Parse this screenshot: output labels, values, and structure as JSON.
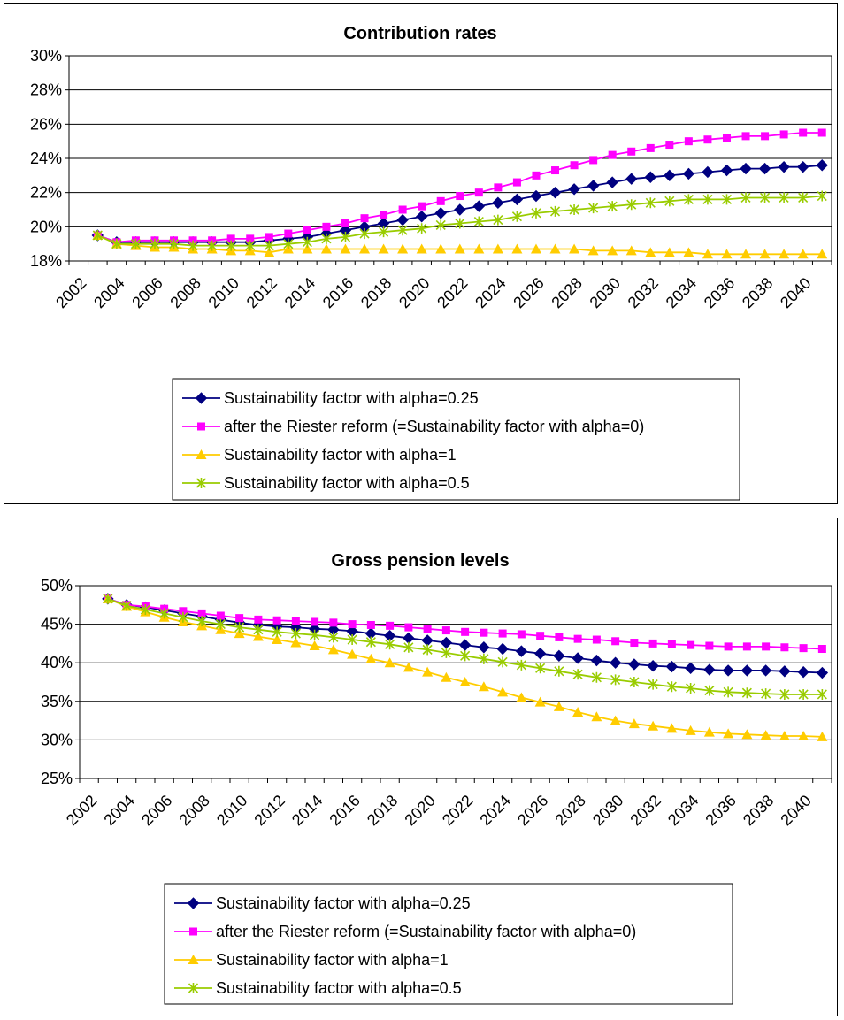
{
  "chart_data": [
    {
      "type": "line",
      "title": "Contribution rates",
      "xlabel": "",
      "ylabel": "",
      "x": [
        2003,
        2004,
        2005,
        2006,
        2007,
        2008,
        2009,
        2010,
        2011,
        2012,
        2013,
        2014,
        2015,
        2016,
        2017,
        2018,
        2019,
        2020,
        2021,
        2022,
        2023,
        2024,
        2025,
        2026,
        2027,
        2028,
        2029,
        2030,
        2031,
        2032,
        2033,
        2034,
        2035,
        2036,
        2037,
        2038,
        2039,
        2040,
        2041
      ],
      "x_ticks": [
        "2002",
        "2004",
        "2006",
        "2008",
        "2010",
        "2012",
        "2014",
        "2016",
        "2018",
        "2020",
        "2022",
        "2024",
        "2026",
        "2028",
        "2030",
        "2032",
        "2034",
        "2036",
        "2038",
        "2040"
      ],
      "ylim": [
        18,
        30
      ],
      "y_ticks": [
        "18%",
        "20%",
        "22%",
        "24%",
        "26%",
        "28%",
        "30%"
      ],
      "grid": "horizontal",
      "legend_position": "bottom",
      "series": [
        {
          "name": "Sustainability factor with alpha=0.25",
          "color": "#000080",
          "marker": "diamond",
          "values": [
            19.5,
            19.1,
            19.1,
            19.1,
            19.1,
            19.1,
            19.1,
            19.1,
            19.1,
            19.2,
            19.3,
            19.4,
            19.6,
            19.8,
            20.0,
            20.2,
            20.4,
            20.6,
            20.8,
            21.0,
            21.2,
            21.4,
            21.6,
            21.8,
            22.0,
            22.2,
            22.4,
            22.6,
            22.8,
            22.9,
            23.0,
            23.1,
            23.2,
            23.3,
            23.4,
            23.4,
            23.5,
            23.5,
            23.6
          ]
        },
        {
          "name": "after the Riester reform (=Sustainability factor with alpha=0)",
          "color": "#FF00FF",
          "marker": "square",
          "values": [
            19.5,
            19.1,
            19.2,
            19.2,
            19.2,
            19.2,
            19.2,
            19.3,
            19.3,
            19.4,
            19.6,
            19.8,
            20.0,
            20.2,
            20.5,
            20.7,
            21.0,
            21.2,
            21.5,
            21.8,
            22.0,
            22.3,
            22.6,
            23.0,
            23.3,
            23.6,
            23.9,
            24.2,
            24.4,
            24.6,
            24.8,
            25.0,
            25.1,
            25.2,
            25.3,
            25.3,
            25.4,
            25.5,
            25.5
          ]
        },
        {
          "name": "Sustainability factor with alpha=1",
          "color": "#FFCC00",
          "marker": "triangle",
          "values": [
            19.5,
            19.0,
            18.9,
            18.8,
            18.8,
            18.7,
            18.7,
            18.6,
            18.6,
            18.5,
            18.7,
            18.7,
            18.7,
            18.7,
            18.7,
            18.7,
            18.7,
            18.7,
            18.7,
            18.7,
            18.7,
            18.7,
            18.7,
            18.7,
            18.7,
            18.7,
            18.6,
            18.6,
            18.6,
            18.5,
            18.5,
            18.5,
            18.4,
            18.4,
            18.4,
            18.4,
            18.4,
            18.4,
            18.4
          ]
        },
        {
          "name": "Sustainability factor with alpha=0.5",
          "color": "#99CC00",
          "marker": "asterisk",
          "values": [
            19.5,
            19.0,
            19.0,
            19.0,
            19.0,
            18.9,
            18.9,
            18.9,
            18.9,
            18.9,
            19.0,
            19.1,
            19.3,
            19.4,
            19.6,
            19.7,
            19.8,
            19.9,
            20.1,
            20.2,
            20.3,
            20.4,
            20.6,
            20.8,
            20.9,
            21.0,
            21.1,
            21.2,
            21.3,
            21.4,
            21.5,
            21.6,
            21.6,
            21.6,
            21.7,
            21.7,
            21.7,
            21.7,
            21.8
          ]
        }
      ]
    },
    {
      "type": "line",
      "title": "Gross pension levels",
      "xlabel": "",
      "ylabel": "",
      "x": [
        2003,
        2004,
        2005,
        2006,
        2007,
        2008,
        2009,
        2010,
        2011,
        2012,
        2013,
        2014,
        2015,
        2016,
        2017,
        2018,
        2019,
        2020,
        2021,
        2022,
        2023,
        2024,
        2025,
        2026,
        2027,
        2028,
        2029,
        2030,
        2031,
        2032,
        2033,
        2034,
        2035,
        2036,
        2037,
        2038,
        2039,
        2040,
        2041
      ],
      "x_ticks": [
        "2002",
        "2004",
        "2006",
        "2008",
        "2010",
        "2012",
        "2014",
        "2016",
        "2018",
        "2020",
        "2022",
        "2024",
        "2026",
        "2028",
        "2030",
        "2032",
        "2034",
        "2036",
        "2038",
        "2040"
      ],
      "ylim": [
        25,
        50
      ],
      "y_ticks": [
        "25%",
        "30%",
        "35%",
        "40%",
        "45%",
        "50%"
      ],
      "grid": "horizontal",
      "legend_position": "bottom",
      "series": [
        {
          "name": "Sustainability factor with alpha=0.25",
          "color": "#000080",
          "marker": "diamond",
          "values": [
            48.3,
            47.5,
            47.2,
            46.8,
            46.4,
            46.0,
            45.6,
            45.2,
            44.9,
            44.7,
            44.6,
            44.4,
            44.3,
            44.1,
            43.8,
            43.5,
            43.2,
            42.9,
            42.6,
            42.3,
            42.0,
            41.8,
            41.5,
            41.2,
            40.9,
            40.6,
            40.3,
            40.0,
            39.8,
            39.6,
            39.5,
            39.3,
            39.1,
            39.0,
            39.0,
            39.0,
            38.9,
            38.8,
            38.7
          ]
        },
        {
          "name": "after the Riester reform (=Sustainability factor with alpha=0)",
          "color": "#FF00FF",
          "marker": "square",
          "values": [
            48.3,
            47.5,
            47.3,
            47.0,
            46.7,
            46.4,
            46.1,
            45.8,
            45.6,
            45.5,
            45.4,
            45.3,
            45.2,
            45.0,
            44.9,
            44.8,
            44.6,
            44.4,
            44.2,
            44.0,
            43.9,
            43.8,
            43.7,
            43.5,
            43.3,
            43.1,
            43.0,
            42.8,
            42.6,
            42.5,
            42.4,
            42.3,
            42.2,
            42.1,
            42.1,
            42.1,
            42.0,
            41.9,
            41.8
          ]
        },
        {
          "name": "Sustainability factor with alpha=1",
          "color": "#FFCC00",
          "marker": "triangle",
          "values": [
            48.3,
            47.3,
            46.6,
            45.9,
            45.3,
            44.8,
            44.3,
            43.8,
            43.4,
            43.0,
            42.6,
            42.2,
            41.7,
            41.1,
            40.5,
            40.0,
            39.4,
            38.8,
            38.1,
            37.5,
            36.9,
            36.2,
            35.5,
            34.9,
            34.3,
            33.6,
            33.0,
            32.5,
            32.1,
            31.8,
            31.5,
            31.2,
            31.0,
            30.8,
            30.7,
            30.6,
            30.5,
            30.5,
            30.4
          ]
        },
        {
          "name": "Sustainability factor with alpha=0.5",
          "color": "#99CC00",
          "marker": "asterisk",
          "values": [
            48.3,
            47.4,
            46.9,
            46.4,
            45.9,
            45.4,
            45.0,
            44.6,
            44.3,
            44.0,
            43.8,
            43.6,
            43.3,
            43.0,
            42.7,
            42.4,
            42.0,
            41.7,
            41.3,
            40.9,
            40.5,
            40.1,
            39.7,
            39.3,
            38.9,
            38.5,
            38.1,
            37.8,
            37.5,
            37.2,
            36.9,
            36.7,
            36.4,
            36.2,
            36.1,
            36.0,
            35.9,
            35.9,
            35.9
          ]
        }
      ]
    }
  ]
}
